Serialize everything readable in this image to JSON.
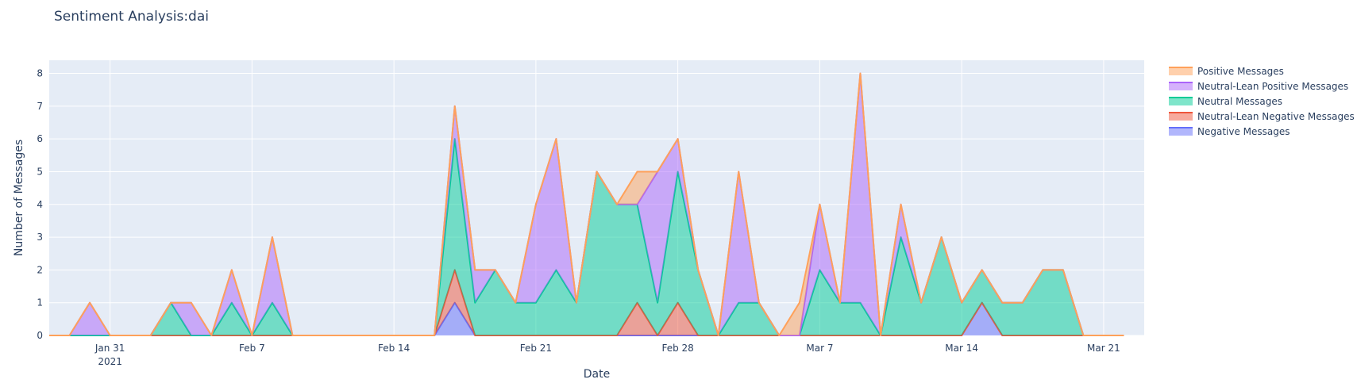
{
  "chart_data": {
    "type": "area",
    "stacked": true,
    "title": "Sentiment Analysis:dai",
    "xlabel": "Date",
    "ylabel": "Number of Messages",
    "x": [
      "2021-01-28",
      "2021-01-29",
      "2021-01-30",
      "2021-01-31",
      "2021-02-01",
      "2021-02-02",
      "2021-02-03",
      "2021-02-04",
      "2021-02-05",
      "2021-02-06",
      "2021-02-07",
      "2021-02-08",
      "2021-02-09",
      "2021-02-10",
      "2021-02-11",
      "2021-02-12",
      "2021-02-13",
      "2021-02-14",
      "2021-02-15",
      "2021-02-16",
      "2021-02-17",
      "2021-02-18",
      "2021-02-19",
      "2021-02-20",
      "2021-02-21",
      "2021-02-22",
      "2021-02-23",
      "2021-02-24",
      "2021-02-25",
      "2021-02-26",
      "2021-02-27",
      "2021-02-28",
      "2021-03-01",
      "2021-03-02",
      "2021-03-03",
      "2021-03-04",
      "2021-03-05",
      "2021-03-06",
      "2021-03-07",
      "2021-03-08",
      "2021-03-09",
      "2021-03-10",
      "2021-03-11",
      "2021-03-12",
      "2021-03-13",
      "2021-03-14",
      "2021-03-15",
      "2021-03-16",
      "2021-03-17",
      "2021-03-18",
      "2021-03-19",
      "2021-03-20",
      "2021-03-21",
      "2021-03-22"
    ],
    "series": [
      {
        "name": "Negative Messages",
        "color": "#636efa",
        "values": [
          0,
          0,
          0,
          0,
          0,
          0,
          0,
          0,
          0,
          0,
          0,
          0,
          0,
          0,
          0,
          0,
          0,
          0,
          0,
          0,
          1,
          0,
          0,
          0,
          0,
          0,
          0,
          0,
          0,
          0,
          0,
          0,
          0,
          0,
          0,
          0,
          0,
          0,
          0,
          0,
          0,
          0,
          0,
          0,
          0,
          0,
          1,
          0,
          0,
          0,
          0,
          0,
          0,
          0
        ]
      },
      {
        "name": "Neutral-Lean Negative Messages",
        "color": "#ef553b",
        "values": [
          0,
          0,
          0,
          0,
          0,
          0,
          0,
          0,
          0,
          0,
          0,
          0,
          0,
          0,
          0,
          0,
          0,
          0,
          0,
          0,
          1,
          0,
          0,
          0,
          0,
          0,
          0,
          0,
          0,
          1,
          0,
          1,
          0,
          0,
          0,
          0,
          0,
          0,
          0,
          0,
          0,
          0,
          0,
          0,
          0,
          0,
          0,
          0,
          0,
          0,
          0,
          0,
          0,
          0
        ]
      },
      {
        "name": "Neutral Messages",
        "color": "#00cc96",
        "values": [
          0,
          0,
          0,
          0,
          0,
          0,
          1,
          0,
          0,
          1,
          0,
          1,
          0,
          0,
          0,
          0,
          0,
          0,
          0,
          0,
          4,
          1,
          2,
          1,
          1,
          2,
          1,
          5,
          4,
          3,
          1,
          4,
          2,
          0,
          1,
          1,
          0,
          0,
          2,
          1,
          1,
          0,
          3,
          1,
          3,
          1,
          1,
          1,
          1,
          2,
          2,
          0,
          0,
          0
        ]
      },
      {
        "name": "Neutral-Lean Positive Messages",
        "color": "#ab63fa",
        "values": [
          0,
          0,
          1,
          0,
          0,
          0,
          0,
          1,
          0,
          1,
          0,
          2,
          0,
          0,
          0,
          0,
          0,
          0,
          0,
          0,
          1,
          1,
          0,
          0,
          3,
          4,
          0,
          0,
          0,
          0,
          4,
          1,
          0,
          0,
          4,
          0,
          0,
          0,
          2,
          0,
          7,
          0,
          1,
          0,
          0,
          0,
          0,
          0,
          0,
          0,
          0,
          0,
          0,
          0
        ]
      },
      {
        "name": "Positive Messages",
        "color": "#ffa15a",
        "values": [
          0,
          0,
          0,
          0,
          0,
          0,
          0,
          0,
          0,
          0,
          0,
          0,
          0,
          0,
          0,
          0,
          0,
          0,
          0,
          0,
          0,
          0,
          0,
          0,
          0,
          0,
          0,
          0,
          0,
          1,
          0,
          0,
          0,
          0,
          0,
          0,
          0,
          1,
          0,
          0,
          0,
          0,
          0,
          0,
          0,
          0,
          0,
          0,
          0,
          0,
          0,
          0,
          0,
          0
        ]
      }
    ],
    "x_ticks": [
      {
        "date": "2021-01-31",
        "label": "Jan 31",
        "sub": "2021"
      },
      {
        "date": "2021-02-07",
        "label": "Feb 7",
        "sub": ""
      },
      {
        "date": "2021-02-14",
        "label": "Feb 14",
        "sub": ""
      },
      {
        "date": "2021-02-21",
        "label": "Feb 21",
        "sub": ""
      },
      {
        "date": "2021-02-28",
        "label": "Feb 28",
        "sub": ""
      },
      {
        "date": "2021-03-07",
        "label": "Mar 7",
        "sub": ""
      },
      {
        "date": "2021-03-14",
        "label": "Mar 14",
        "sub": ""
      },
      {
        "date": "2021-03-21",
        "label": "Mar 21",
        "sub": ""
      }
    ],
    "y_ticks": [
      0,
      1,
      2,
      3,
      4,
      5,
      6,
      7,
      8
    ],
    "xlim": [
      "2021-01-28",
      "2021-03-23"
    ],
    "ylim": [
      0,
      8.4
    ],
    "grid": true,
    "legend_position": "right",
    "legend_order": [
      "Positive Messages",
      "Neutral-Lean Positive Messages",
      "Neutral Messages",
      "Neutral-Lean Negative Messages",
      "Negative Messages"
    ],
    "plot_background": "#e5ecf6"
  }
}
